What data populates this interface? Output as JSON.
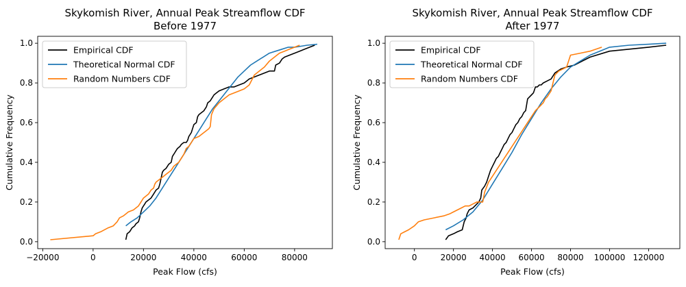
{
  "figure": {
    "background": "#ffffff"
  },
  "chart_data": [
    {
      "type": "line",
      "title": "Skykomish River, Annual Peak Streamflow CDF\nBefore 1977",
      "xlabel": "Peak Flow (cfs)",
      "ylabel": "Cumulative Frequency",
      "xlim": [
        -22000,
        95000
      ],
      "ylim": [
        -0.035,
        1.035
      ],
      "xticks": [
        -20000,
        0,
        20000,
        40000,
        60000,
        80000
      ],
      "xtick_labels": [
        "−20000",
        "0",
        "20000",
        "40000",
        "60000",
        "80000"
      ],
      "yticks": [
        0.0,
        0.2,
        0.4,
        0.6,
        0.8,
        1.0
      ],
      "ytick_labels": [
        "0.0",
        "0.2",
        "0.4",
        "0.6",
        "0.8",
        "1.0"
      ],
      "grid": false,
      "legend": "upper left",
      "series": [
        {
          "name": "Empirical CDF",
          "color": "#000000",
          "x": [
            13000,
            13500,
            14500,
            15500,
            16500,
            17000,
            18000,
            18500,
            19000,
            19500,
            20500,
            21000,
            22000,
            23000,
            24000,
            25000,
            26000,
            26500,
            27000,
            27500,
            28000,
            29000,
            30000,
            31000,
            31500,
            32500,
            33000,
            33500,
            34500,
            35000,
            36000,
            37000,
            37500,
            38000,
            39000,
            39500,
            40000,
            41000,
            41500,
            42000,
            43000,
            44000,
            44500,
            45000,
            45500,
            46500,
            47000,
            48000,
            49000,
            50000,
            52000,
            54000,
            56000,
            58000,
            60000,
            61000,
            62000,
            64000,
            66000,
            68000,
            70000,
            72000,
            72500,
            74000,
            75000,
            76000,
            78000,
            80000,
            82000,
            84000,
            86000,
            88000
          ],
          "y": [
            0.01,
            0.04,
            0.05,
            0.07,
            0.08,
            0.09,
            0.1,
            0.12,
            0.15,
            0.17,
            0.19,
            0.2,
            0.21,
            0.22,
            0.24,
            0.26,
            0.27,
            0.29,
            0.32,
            0.35,
            0.36,
            0.37,
            0.39,
            0.4,
            0.43,
            0.45,
            0.46,
            0.47,
            0.48,
            0.49,
            0.5,
            0.5,
            0.51,
            0.53,
            0.55,
            0.57,
            0.59,
            0.6,
            0.63,
            0.64,
            0.65,
            0.66,
            0.67,
            0.68,
            0.7,
            0.71,
            0.72,
            0.74,
            0.75,
            0.76,
            0.77,
            0.78,
            0.78,
            0.79,
            0.8,
            0.81,
            0.82,
            0.83,
            0.84,
            0.85,
            0.86,
            0.86,
            0.89,
            0.9,
            0.92,
            0.93,
            0.94,
            0.95,
            0.96,
            0.97,
            0.98,
            0.99
          ]
        },
        {
          "name": "Theoretical Normal CDF",
          "color": "#1f77b4",
          "x": [
            13000,
            15000,
            17500,
            20000,
            22500,
            25000,
            27500,
            30000,
            32500,
            35000,
            37500,
            40000,
            42500,
            45000,
            47500,
            50000,
            52500,
            55000,
            57500,
            60000,
            62500,
            65000,
            67500,
            70000,
            72500,
            75000,
            77500,
            80000,
            82500,
            85000,
            87500,
            89000
          ],
          "y": [
            0.08,
            0.1,
            0.12,
            0.15,
            0.18,
            0.22,
            0.27,
            0.32,
            0.37,
            0.42,
            0.47,
            0.52,
            0.57,
            0.62,
            0.67,
            0.71,
            0.75,
            0.79,
            0.83,
            0.86,
            0.89,
            0.91,
            0.93,
            0.95,
            0.96,
            0.97,
            0.98,
            0.98,
            0.985,
            0.99,
            0.993,
            0.995
          ]
        },
        {
          "name": "Random Numbers CDF",
          "color": "#ff7f0e",
          "x": [
            -17000,
            0,
            1000,
            3000,
            6000,
            8000,
            9500,
            10000,
            10500,
            12000,
            14000,
            16000,
            17000,
            18000,
            19000,
            20000,
            21000,
            22000,
            23000,
            24000,
            24500,
            25000,
            26000,
            27000,
            28000,
            29000,
            30000,
            31000,
            32000,
            33000,
            34000,
            35000,
            36000,
            37000,
            38000,
            39000,
            40000,
            42000,
            44000,
            46000,
            46500,
            47000,
            48000,
            50000,
            52000,
            54000,
            56000,
            58000,
            60000,
            62000,
            64000,
            66000,
            68000,
            70000,
            72000,
            74000,
            76000,
            78000,
            80000,
            82000
          ],
          "y": [
            0.01,
            0.03,
            0.04,
            0.05,
            0.07,
            0.08,
            0.1,
            0.11,
            0.12,
            0.13,
            0.15,
            0.16,
            0.17,
            0.18,
            0.2,
            0.22,
            0.23,
            0.24,
            0.26,
            0.27,
            0.29,
            0.3,
            0.31,
            0.32,
            0.33,
            0.34,
            0.35,
            0.36,
            0.38,
            0.39,
            0.4,
            0.42,
            0.44,
            0.47,
            0.48,
            0.5,
            0.52,
            0.53,
            0.55,
            0.57,
            0.58,
            0.64,
            0.67,
            0.7,
            0.72,
            0.74,
            0.75,
            0.76,
            0.77,
            0.79,
            0.84,
            0.86,
            0.88,
            0.91,
            0.93,
            0.95,
            0.96,
            0.97,
            0.98,
            0.99
          ]
        }
      ]
    },
    {
      "type": "line",
      "title": "Skykomish River, Annual Peak Streamflow CDF\nAfter 1977",
      "xlabel": "Peak Flow (cfs)",
      "ylabel": "Cumulative Frequency",
      "xlim": [
        -15000,
        136000
      ],
      "ylim": [
        -0.035,
        1.035
      ],
      "xticks": [
        0,
        20000,
        40000,
        60000,
        80000,
        100000,
        120000
      ],
      "xtick_labels": [
        "0",
        "20000",
        "40000",
        "60000",
        "80000",
        "100000",
        "120000"
      ],
      "yticks": [
        0.0,
        0.2,
        0.4,
        0.6,
        0.8,
        1.0
      ],
      "ytick_labels": [
        "0.0",
        "0.2",
        "0.4",
        "0.6",
        "0.8",
        "1.0"
      ],
      "grid": false,
      "legend": "upper left",
      "series": [
        {
          "name": "Empirical CDF",
          "color": "#000000",
          "x": [
            16000,
            17500,
            20000,
            22000,
            24500,
            25500,
            26500,
            27000,
            28000,
            30000,
            32000,
            33000,
            34000,
            34500,
            36000,
            37000,
            38000,
            39000,
            40000,
            41000,
            42000,
            43000,
            44000,
            45000,
            46000,
            47000,
            48000,
            49000,
            50000,
            51000,
            52000,
            53000,
            54000,
            55000,
            56000,
            57000,
            58000,
            59000,
            60000,
            61000,
            62000,
            63000,
            64000,
            65000,
            66000,
            68000,
            70000,
            72000,
            75000,
            78000,
            82000,
            86000,
            90000,
            100000,
            110000,
            120000,
            129000
          ],
          "y": [
            0.01,
            0.03,
            0.04,
            0.05,
            0.06,
            0.1,
            0.12,
            0.14,
            0.16,
            0.17,
            0.19,
            0.2,
            0.22,
            0.26,
            0.28,
            0.3,
            0.33,
            0.36,
            0.38,
            0.4,
            0.42,
            0.43,
            0.45,
            0.47,
            0.49,
            0.5,
            0.52,
            0.54,
            0.55,
            0.57,
            0.59,
            0.6,
            0.62,
            0.63,
            0.65,
            0.66,
            0.72,
            0.73,
            0.74,
            0.75,
            0.78,
            0.78,
            0.79,
            0.79,
            0.8,
            0.81,
            0.82,
            0.85,
            0.87,
            0.88,
            0.89,
            0.91,
            0.93,
            0.96,
            0.97,
            0.98,
            0.99
          ]
        },
        {
          "name": "Theoretical Normal CDF",
          "color": "#1f77b4",
          "x": [
            16000,
            20000,
            25000,
            30000,
            35000,
            40000,
            45000,
            50000,
            55000,
            60000,
            65000,
            70000,
            75000,
            80000,
            85000,
            90000,
            95000,
            100000,
            110000,
            120000,
            129000
          ],
          "y": [
            0.06,
            0.08,
            0.11,
            0.15,
            0.21,
            0.29,
            0.37,
            0.45,
            0.54,
            0.62,
            0.7,
            0.77,
            0.83,
            0.88,
            0.91,
            0.94,
            0.96,
            0.98,
            0.99,
            0.995,
            1.0
          ]
        },
        {
          "name": "Random Numbers CDF",
          "color": "#ff7f0e",
          "x": [
            -8000,
            -7000,
            -5000,
            -3000,
            0,
            2000,
            5000,
            10000,
            15000,
            18000,
            20000,
            22000,
            24000,
            26000,
            28000,
            30000,
            32000,
            34000,
            35000,
            36000,
            38000,
            40000,
            42000,
            44000,
            46000,
            48000,
            50000,
            52000,
            54000,
            56000,
            58000,
            60000,
            62000,
            64000,
            66000,
            67000,
            68000,
            70000,
            72000,
            74000,
            76000,
            78000,
            80000,
            85000,
            90000,
            96000
          ],
          "y": [
            0.01,
            0.04,
            0.05,
            0.06,
            0.08,
            0.1,
            0.11,
            0.12,
            0.13,
            0.14,
            0.15,
            0.16,
            0.17,
            0.18,
            0.18,
            0.19,
            0.2,
            0.2,
            0.2,
            0.25,
            0.3,
            0.33,
            0.36,
            0.39,
            0.42,
            0.45,
            0.48,
            0.51,
            0.54,
            0.57,
            0.6,
            0.63,
            0.66,
            0.68,
            0.7,
            0.72,
            0.73,
            0.76,
            0.84,
            0.86,
            0.87,
            0.88,
            0.94,
            0.95,
            0.96,
            0.98
          ]
        }
      ]
    }
  ]
}
